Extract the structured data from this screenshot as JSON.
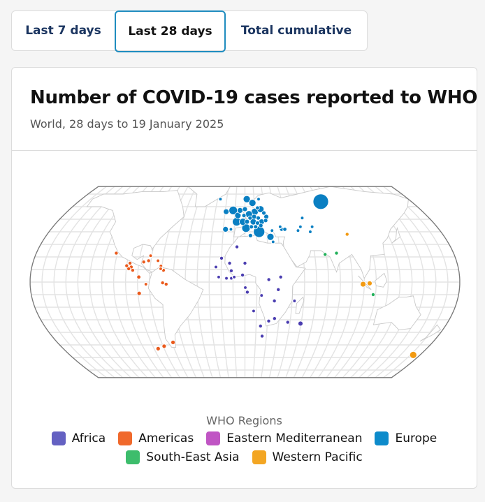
{
  "tabs": [
    {
      "label": "Last 7 days",
      "active": false
    },
    {
      "label": "Last 28 days",
      "active": true
    },
    {
      "label": "Total cumulative",
      "active": false
    }
  ],
  "card": {
    "title": "Number of COVID-19 cases reported to WHO",
    "subtitle": "World, 28 days to 19 January 2025"
  },
  "chart_data": {
    "type": "bubble-map",
    "title": "Number of COVID-19 cases reported to WHO",
    "subtitle": "World, 28 days to 19 January 2025",
    "legend_title": "WHO Regions",
    "legend_placement": "bottom",
    "regions": [
      {
        "key": "AFR",
        "name": "Africa",
        "color": "#6461c2",
        "bubble_color": "#4a3db0"
      },
      {
        "key": "AMR",
        "name": "Americas",
        "color": "#f0692c",
        "bubble_color": "#ea5a1c"
      },
      {
        "key": "EMR",
        "name": "Eastern Mediterranean",
        "color": "#c055c4",
        "bubble_color": "#b547ba"
      },
      {
        "key": "EUR",
        "name": "Europe",
        "color": "#0d8bcb",
        "bubble_color": "#0a7fc2"
      },
      {
        "key": "SEAR",
        "name": "South-East Asia",
        "color": "#3dbd6c",
        "bubble_color": "#22b05a"
      },
      {
        "key": "WPR",
        "name": "Western Pacific",
        "color": "#f3a623",
        "bubble_color": "#f29a12"
      }
    ],
    "points": [
      {
        "r": "EUR",
        "lon": -27,
        "lat": 66,
        "cases": 500
      },
      {
        "r": "EUR",
        "lon": 2,
        "lat": 66,
        "cases": 25000
      },
      {
        "r": "EUR",
        "lon": 15,
        "lat": 66,
        "cases": 600
      },
      {
        "r": "EUR",
        "lon": 8,
        "lat": 63,
        "cases": 25000
      },
      {
        "r": "EUR",
        "lon": 82,
        "lat": 64,
        "cases": 120000
      },
      {
        "r": "EUR",
        "lon": 16,
        "lat": 58,
        "cases": 24000
      },
      {
        "r": "EUR",
        "lon": 13,
        "lat": 59,
        "cases": 8000
      },
      {
        "r": "EUR",
        "lon": -12,
        "lat": 57,
        "cases": 36000
      },
      {
        "r": "EUR",
        "lon": -19,
        "lat": 56,
        "cases": 16000
      },
      {
        "r": "EUR",
        "lon": -5,
        "lat": 57,
        "cases": 16000
      },
      {
        "r": "EUR",
        "lon": 0,
        "lat": 58,
        "cases": 12000
      },
      {
        "r": "EUR",
        "lon": 10,
        "lat": 56,
        "cases": 25000
      },
      {
        "r": "EUR",
        "lon": 19,
        "lat": 55,
        "cases": 9000
      },
      {
        "r": "EUR",
        "lon": -7,
        "lat": 53,
        "cases": 20000
      },
      {
        "r": "EUR",
        "lon": 4,
        "lat": 54,
        "cases": 25000
      },
      {
        "r": "EUR",
        "lon": -1,
        "lat": 53,
        "cases": 9000
      },
      {
        "r": "EUR",
        "lon": 21,
        "lat": 52,
        "cases": 12000
      },
      {
        "r": "EUR",
        "lon": 9,
        "lat": 52,
        "cases": 12000
      },
      {
        "r": "EUR",
        "lon": 13,
        "lat": 51,
        "cases": 9000
      },
      {
        "r": "EUR",
        "lon": 5,
        "lat": 51,
        "cases": 9000
      },
      {
        "r": "EUR",
        "lon": -8,
        "lat": 48,
        "cases": 36000
      },
      {
        "r": "EUR",
        "lon": -2,
        "lat": 48,
        "cases": 25000
      },
      {
        "r": "EUR",
        "lon": 2,
        "lat": 48,
        "cases": 12000
      },
      {
        "r": "EUR",
        "lon": 8,
        "lat": 48,
        "cases": 20000
      },
      {
        "r": "EUR",
        "lon": 16,
        "lat": 48,
        "cases": 16000
      },
      {
        "r": "EUR",
        "lon": 20,
        "lat": 49,
        "cases": 9000
      },
      {
        "r": "EUR",
        "lon": 12,
        "lat": 47,
        "cases": 9000
      },
      {
        "r": "EUR",
        "lon": -18,
        "lat": 42,
        "cases": 16000
      },
      {
        "r": "EUR",
        "lon": -13,
        "lat": 42,
        "cases": 600
      },
      {
        "r": "EUR",
        "lon": 1,
        "lat": 43,
        "cases": 36000
      },
      {
        "r": "EUR",
        "lon": 6,
        "lat": 44,
        "cases": 9000
      },
      {
        "r": "EUR",
        "lon": 10,
        "lat": 44,
        "cases": 9000
      },
      {
        "r": "EUR",
        "lon": 15,
        "lat": 45,
        "cases": 9000
      },
      {
        "r": "EUR",
        "lon": 13,
        "lat": 40,
        "cases": 64000
      },
      {
        "r": "EUR",
        "lon": 5,
        "lat": 37,
        "cases": 9000
      },
      {
        "r": "EUR",
        "lon": 25,
        "lat": 41,
        "cases": 600
      },
      {
        "r": "EUR",
        "lon": 23,
        "lat": 36,
        "cases": 25000
      },
      {
        "r": "EUR",
        "lon": 25,
        "lat": 32,
        "cases": 600
      },
      {
        "r": "EUR",
        "lon": 33,
        "lat": 44,
        "cases": 600
      },
      {
        "r": "EUR",
        "lon": 34,
        "lat": 42,
        "cases": 8000
      },
      {
        "r": "EUR",
        "lon": 37,
        "lat": 42,
        "cases": 8000
      },
      {
        "r": "EUR",
        "lon": 56,
        "lat": 51,
        "cases": 600
      },
      {
        "r": "EUR",
        "lon": 52,
        "lat": 44,
        "cases": 600
      },
      {
        "r": "EUR",
        "lon": 49,
        "lat": 41,
        "cases": 600
      },
      {
        "r": "EUR",
        "lon": 63,
        "lat": 44,
        "cases": 600
      },
      {
        "r": "EUR",
        "lon": 60,
        "lat": 40,
        "cases": 600
      },
      {
        "r": "AFR",
        "lon": -7,
        "lat": 28,
        "cases": 6000
      },
      {
        "r": "AFR",
        "lon": -20,
        "lat": 19,
        "cases": 6000
      },
      {
        "r": "AFR",
        "lon": -13,
        "lat": 15,
        "cases": 6000
      },
      {
        "r": "AFR",
        "lon": 0,
        "lat": 15,
        "cases": 6000
      },
      {
        "r": "AFR",
        "lon": -24.5,
        "lat": 12,
        "cases": 500
      },
      {
        "r": "AFR",
        "lon": -11.5,
        "lat": 9,
        "cases": 6000
      },
      {
        "r": "AFR",
        "lon": -2,
        "lat": 5.6,
        "cases": 6000
      },
      {
        "r": "AFR",
        "lon": -22,
        "lat": 4,
        "cases": 500
      },
      {
        "r": "AFR",
        "lon": -15.5,
        "lat": 3,
        "cases": 500
      },
      {
        "r": "AFR",
        "lon": -11.4,
        "lat": 3,
        "cases": 500
      },
      {
        "r": "AFR",
        "lon": -9,
        "lat": 4,
        "cases": 500
      },
      {
        "r": "AFR",
        "lon": 20,
        "lat": 2,
        "cases": 6000
      },
      {
        "r": "AFR",
        "lon": 30,
        "lat": 4,
        "cases": 6000
      },
      {
        "r": "AFR",
        "lon": 0.3,
        "lat": -4.4,
        "cases": 500
      },
      {
        "r": "AFR",
        "lon": 2,
        "lat": -8,
        "cases": 6000
      },
      {
        "r": "AFR",
        "lon": 28,
        "lat": -6,
        "cases": 6000
      },
      {
        "r": "AFR",
        "lon": 14,
        "lat": -10.6,
        "cases": 500
      },
      {
        "r": "AFR",
        "lon": 25,
        "lat": -15,
        "cases": 6000
      },
      {
        "r": "AFR",
        "lon": 42,
        "lat": -15,
        "cases": 500
      },
      {
        "r": "AFR",
        "lon": 7.5,
        "lat": -23,
        "cases": 500
      },
      {
        "r": "AFR",
        "lon": 21,
        "lat": -31,
        "cases": 6000
      },
      {
        "r": "AFR",
        "lon": 26,
        "lat": -29,
        "cases": 6000
      },
      {
        "r": "AFR",
        "lon": 14,
        "lat": -35,
        "cases": 6000
      },
      {
        "r": "AFR",
        "lon": 38,
        "lat": -32,
        "cases": 6000
      },
      {
        "r": "AFR",
        "lon": 49.5,
        "lat": -33,
        "cases": 12000
      },
      {
        "r": "AFR",
        "lon": 16,
        "lat": -43,
        "cases": 6000
      },
      {
        "r": "AMR",
        "lon": -111,
        "lat": 23,
        "cases": 6000
      },
      {
        "r": "AMR",
        "lon": -81,
        "lat": 21,
        "cases": 700
      },
      {
        "r": "AMR",
        "lon": -86,
        "lat": 16,
        "cases": 6000
      },
      {
        "r": "AMR",
        "lon": -82,
        "lat": 17,
        "cases": 6000
      },
      {
        "r": "AMR",
        "lon": -74,
        "lat": 17,
        "cases": 700
      },
      {
        "r": "AMR",
        "lon": -97.5,
        "lat": 15,
        "cases": 6000
      },
      {
        "r": "AMR",
        "lon": -100,
        "lat": 13,
        "cases": 6000
      },
      {
        "r": "AMR",
        "lon": -96,
        "lat": 12,
        "cases": 6000
      },
      {
        "r": "AMR",
        "lon": -98,
        "lat": 10.6,
        "cases": 6000
      },
      {
        "r": "AMR",
        "lon": -94.5,
        "lat": 9.4,
        "cases": 6000
      },
      {
        "r": "AMR",
        "lon": -71,
        "lat": 12.8,
        "cases": 700
      },
      {
        "r": "AMR",
        "lon": -71,
        "lat": 10.6,
        "cases": 700
      },
      {
        "r": "AMR",
        "lon": -68.6,
        "lat": 9.4,
        "cases": 6000
      },
      {
        "r": "AMR",
        "lon": -89,
        "lat": 4,
        "cases": 8000
      },
      {
        "r": "AMR",
        "lon": -83,
        "lat": -1.7,
        "cases": 700
      },
      {
        "r": "AMR",
        "lon": -69,
        "lat": -0.6,
        "cases": 6000
      },
      {
        "r": "AMR",
        "lon": -66,
        "lat": -1.7,
        "cases": 6000
      },
      {
        "r": "AMR",
        "lon": -89,
        "lat": -9,
        "cases": 9000
      },
      {
        "r": "AMR",
        "lon": -69,
        "lat": -48,
        "cases": 9000
      },
      {
        "r": "AMR",
        "lon": -79,
        "lat": -51,
        "cases": 9000
      },
      {
        "r": "AMR",
        "lon": -86,
        "lat": -53,
        "cases": 9000
      },
      {
        "r": "WPR",
        "lon": 93,
        "lat": 38,
        "cases": 6000
      },
      {
        "r": "SEAR",
        "lon": 69,
        "lat": 22,
        "cases": 5000
      },
      {
        "r": "SEAR",
        "lon": 79,
        "lat": 23,
        "cases": 5000
      },
      {
        "r": "WPR",
        "lon": 99,
        "lat": -1.7,
        "cases": 16000
      },
      {
        "r": "WPR",
        "lon": 104.5,
        "lat": -1,
        "cases": 12000
      },
      {
        "r": "SEAR",
        "lon": 108,
        "lat": -10,
        "cases": 5000
      },
      {
        "r": "WPR",
        "lon": 173,
        "lat": -58,
        "cases": 25000
      }
    ]
  }
}
